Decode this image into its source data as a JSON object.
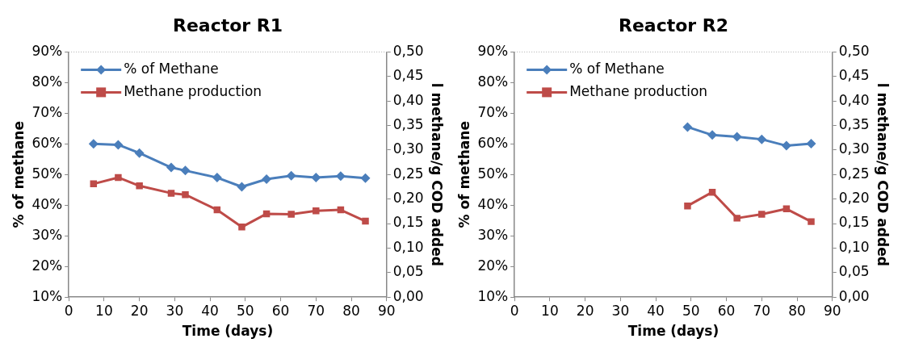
{
  "chart_data": [
    {
      "type": "line",
      "title": "Reactor R1",
      "xlabel": "Time (days)",
      "ylabel": "% of methane",
      "y2label": "l methane/g COD added",
      "x": [
        7,
        14,
        20,
        29,
        33,
        42,
        49,
        56,
        63,
        70,
        77,
        84
      ],
      "series": [
        {
          "name": "% of Methane",
          "color": "#4a7ebb",
          "marker": "diamond",
          "values": [
            60,
            59.7,
            57,
            52.3,
            51.3,
            49,
            46,
            48.5,
            49.6,
            49,
            49.5,
            48.8
          ]
        },
        {
          "name": "Methane production",
          "color": "#be4b48",
          "marker": "square",
          "axis": "y2",
          "values": [
            0.231,
            0.244,
            0.227,
            0.212,
            0.209,
            0.178,
            0.143,
            0.17,
            0.169,
            0.176,
            0.178,
            0.155
          ]
        }
      ],
      "xlim": [
        0,
        90
      ],
      "xticks": [
        0,
        10,
        20,
        30,
        40,
        50,
        60,
        70,
        80,
        90
      ],
      "ylim": [
        10,
        90
      ],
      "yticks": [
        {
          "value": 10,
          "label": "10%"
        },
        {
          "value": 20,
          "label": "20%"
        },
        {
          "value": 30,
          "label": "30%"
        },
        {
          "value": 40,
          "label": "40%"
        },
        {
          "value": 50,
          "label": "50%"
        },
        {
          "value": 60,
          "label": "60%"
        },
        {
          "value": 70,
          "label": "70%"
        },
        {
          "value": 80,
          "label": "80%"
        },
        {
          "value": 90,
          "label": "90%"
        }
      ],
      "y2lim": [
        0,
        0.5
      ],
      "y2ticks": [
        {
          "value": 0,
          "label": "0,00"
        },
        {
          "value": 0.05,
          "label": "0,05"
        },
        {
          "value": 0.1,
          "label": "0,10"
        },
        {
          "value": 0.15,
          "label": "0,15"
        },
        {
          "value": 0.2,
          "label": "0,20"
        },
        {
          "value": 0.25,
          "label": "0,25"
        },
        {
          "value": 0.3,
          "label": "0,30"
        },
        {
          "value": 0.35,
          "label": "0,35"
        },
        {
          "value": 0.4,
          "label": "0,40"
        },
        {
          "value": 0.45,
          "label": "0,45"
        },
        {
          "value": 0.5,
          "label": "0,50"
        }
      ],
      "legend": "top left",
      "grid": false
    },
    {
      "type": "line",
      "title": "Reactor R2",
      "xlabel": "Time (days)",
      "ylabel": "% of methane",
      "y2label": "l methane/g COD added",
      "x": [
        49,
        56,
        63,
        70,
        77,
        84
      ],
      "series": [
        {
          "name": "% of Methane",
          "color": "#4a7ebb",
          "marker": "diamond",
          "values": [
            65.5,
            62.9,
            62.3,
            61.5,
            59.4,
            60.1
          ]
        },
        {
          "name": "Methane production",
          "color": "#be4b48",
          "marker": "square",
          "axis": "y2",
          "values": [
            0.186,
            0.214,
            0.161,
            0.169,
            0.18,
            0.154
          ]
        }
      ],
      "xlim": [
        0,
        90
      ],
      "xticks": [
        0,
        10,
        20,
        30,
        40,
        50,
        60,
        70,
        80,
        90
      ],
      "ylim": [
        10,
        90
      ],
      "yticks": [
        {
          "value": 10,
          "label": "10%"
        },
        {
          "value": 20,
          "label": "20%"
        },
        {
          "value": 30,
          "label": "30%"
        },
        {
          "value": 40,
          "label": "40%"
        },
        {
          "value": 50,
          "label": "50%"
        },
        {
          "value": 60,
          "label": "60%"
        },
        {
          "value": 70,
          "label": "70%"
        },
        {
          "value": 80,
          "label": "80%"
        },
        {
          "value": 90,
          "label": "90%"
        }
      ],
      "y2lim": [
        0,
        0.5
      ],
      "y2ticks": [
        {
          "value": 0,
          "label": "0,00"
        },
        {
          "value": 0.05,
          "label": "0,05"
        },
        {
          "value": 0.1,
          "label": "0,10"
        },
        {
          "value": 0.15,
          "label": "0,15"
        },
        {
          "value": 0.2,
          "label": "0,20"
        },
        {
          "value": 0.25,
          "label": "0,25"
        },
        {
          "value": 0.3,
          "label": "0,30"
        },
        {
          "value": 0.35,
          "label": "0,35"
        },
        {
          "value": 0.4,
          "label": "0,40"
        },
        {
          "value": 0.45,
          "label": "0,45"
        },
        {
          "value": 0.5,
          "label": "0,50"
        }
      ],
      "legend": "top left",
      "grid": false
    }
  ]
}
